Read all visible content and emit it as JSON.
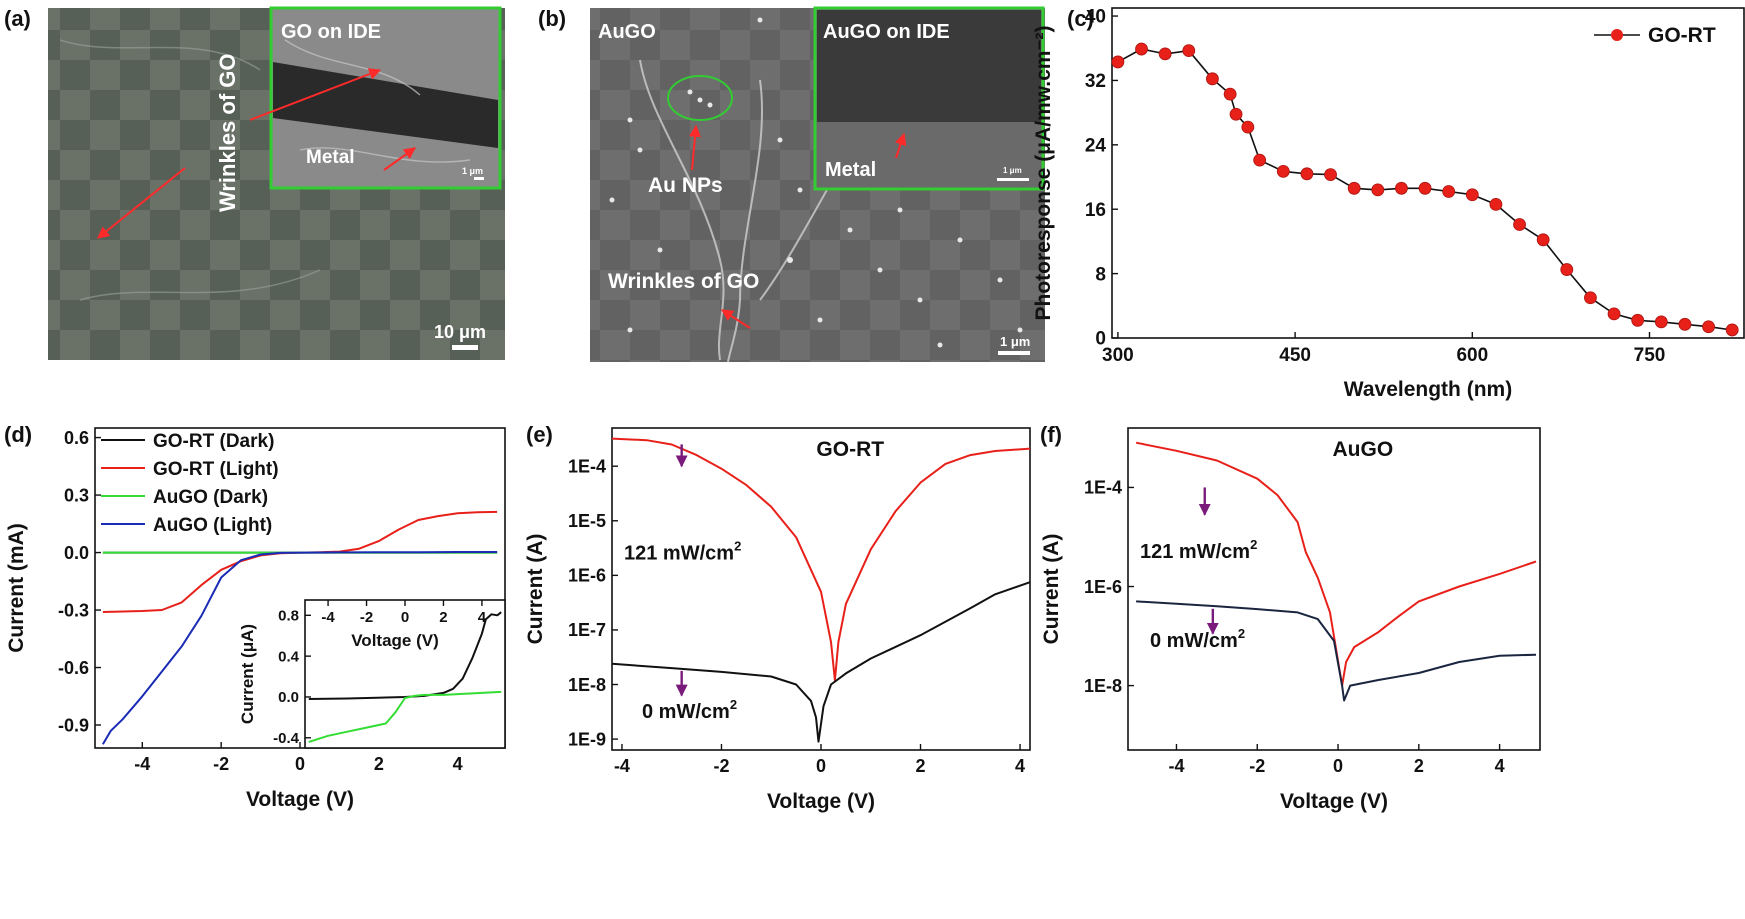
{
  "panels": {
    "a": {
      "label": "(a)",
      "inset_title": "GO on IDE",
      "wrinkles_label": "Wrinkles of GO",
      "metal_label": "Metal",
      "scale_main": "10 μm",
      "scale_inset": "1 μm"
    },
    "b": {
      "label": "(b)",
      "title": "AuGO",
      "inset_title": "AuGO on IDE",
      "au_label": "Au NPs",
      "wrinkles_label": "Wrinkles of GO",
      "metal_label": "Metal",
      "scale_main": "1 μm",
      "scale_inset": "1 μm"
    },
    "c": {
      "label": "(c)"
    },
    "d": {
      "label": "(d)"
    },
    "e": {
      "label": "(e)",
      "annot_light": "121 mW/cm",
      "annot_dark": "0 mW/cm",
      "annot_sup": "2"
    },
    "f": {
      "label": "(f)",
      "annot_light": "121 mW/cm",
      "annot_dark": "0 mW/cm",
      "annot_sup": "2"
    }
  },
  "colors": {
    "red": "#e8201a",
    "black": "#111111",
    "green": "#33dd33",
    "blue": "#1a2bb5",
    "arrow": "#7a1a7a",
    "inset_border": "#33cc33"
  },
  "chart_data": [
    {
      "id": "c",
      "type": "scatter",
      "title": "",
      "xlabel": "Wavelength (nm)",
      "ylabel": "Photoresponse (μA/mw.cm⁻²)",
      "xlim": [
        295,
        830
      ],
      "ylim": [
        0,
        41
      ],
      "xticks": [
        300,
        450,
        600,
        750
      ],
      "yticks": [
        0,
        8,
        16,
        24,
        32,
        40
      ],
      "legend": "top-right",
      "series": [
        {
          "name": "GO-RT",
          "x": [
            300,
            320,
            340,
            360,
            380,
            395,
            400,
            410,
            420,
            440,
            460,
            480,
            500,
            520,
            540,
            560,
            580,
            600,
            620,
            640,
            660,
            680,
            700,
            720,
            740,
            760,
            780,
            800,
            820
          ],
          "y": [
            34.3,
            35.9,
            35.3,
            35.7,
            32.2,
            30.3,
            27.8,
            26.2,
            22.1,
            20.7,
            20.4,
            20.3,
            18.6,
            18.4,
            18.6,
            18.6,
            18.2,
            17.8,
            16.6,
            14.1,
            12.2,
            8.5,
            5.0,
            3.0,
            2.2,
            2.0,
            1.7,
            1.4,
            1.0
          ]
        }
      ]
    },
    {
      "id": "d",
      "type": "line",
      "xlabel": "Voltage (V)",
      "ylabel": "Current (mA)",
      "xlim": [
        -5.2,
        5.2
      ],
      "ylim": [
        -1.02,
        0.65
      ],
      "xticks": [
        -4,
        -2,
        0,
        2,
        4
      ],
      "yticks": [
        -0.9,
        -0.6,
        -0.3,
        0.0,
        0.3,
        0.6
      ],
      "ytick_labels": [
        "-0.9",
        "-0.6",
        "-0.3",
        "0.0",
        "0.3",
        "0.6"
      ],
      "legend": "top-left",
      "series": [
        {
          "name": "GO-RT (Dark)",
          "color": "#111111",
          "x": [
            -5,
            0,
            5
          ],
          "y": [
            0,
            0,
            0
          ]
        },
        {
          "name": "GO-RT (Light)",
          "color": "#e8201a",
          "x": [
            -5,
            -4,
            -3.5,
            -3,
            -2.5,
            -2,
            -1.5,
            -1,
            -0.5,
            0,
            0.5,
            1,
            1.5,
            2,
            2.5,
            3,
            3.5,
            4,
            4.5,
            5
          ],
          "y": [
            -0.31,
            -0.305,
            -0.3,
            -0.26,
            -0.17,
            -0.09,
            -0.045,
            -0.015,
            -0.004,
            0.0,
            0.002,
            0.005,
            0.02,
            0.06,
            0.12,
            0.17,
            0.19,
            0.205,
            0.21,
            0.212
          ]
        },
        {
          "name": "AuGO  (Dark)",
          "color": "#33dd33",
          "x": [
            -5,
            0,
            5
          ],
          "y": [
            0,
            0,
            0
          ]
        },
        {
          "name": "AuGO  (Light)",
          "color": "#1a2bb5",
          "x": [
            -5,
            -4.8,
            -4.5,
            -4,
            -3.5,
            -3,
            -2.5,
            -2,
            -1.5,
            -1,
            -0.5,
            0,
            1,
            2,
            3,
            4,
            5
          ],
          "y": [
            -1.0,
            -0.93,
            -0.87,
            -0.75,
            -0.62,
            -0.49,
            -0.33,
            -0.13,
            -0.04,
            -0.01,
            -0.002,
            0.0,
            0.001,
            0.002,
            0.002,
            0.003,
            0.003
          ]
        }
      ],
      "inset": {
        "type": "line",
        "xlabel": "Voltage (V)",
        "ylabel": "Current (μA)",
        "xlim": [
          -5.2,
          5.2
        ],
        "ylim": [
          -0.5,
          0.95
        ],
        "xticks": [
          -4,
          -2,
          0,
          2,
          4
        ],
        "yticks": [
          -0.4,
          0.0,
          0.4,
          0.8
        ],
        "ytick_labels": [
          "-0.4",
          "0.0",
          "0.4",
          "0.8"
        ],
        "series": [
          {
            "name": "GO-RT (Dark)",
            "color": "#111111",
            "x": [
              -5,
              -3,
              -1,
              0,
              1,
              2,
              2.5,
              3,
              3.5,
              4,
              4.2,
              4.5,
              4.8,
              5
            ],
            "y": [
              -0.02,
              -0.015,
              -0.005,
              0.0,
              0.01,
              0.04,
              0.08,
              0.18,
              0.38,
              0.62,
              0.76,
              0.81,
              0.8,
              0.83
            ]
          },
          {
            "name": "AuGO (Dark)",
            "color": "#33dd33",
            "x": [
              -5,
              -4,
              -3,
              -2,
              -1,
              -0.5,
              0,
              0.5,
              1,
              2,
              3,
              4,
              5
            ],
            "y": [
              -0.44,
              -0.38,
              -0.34,
              -0.3,
              -0.26,
              -0.15,
              -0.01,
              0.01,
              0.02,
              0.02,
              0.03,
              0.04,
              0.05
            ]
          }
        ]
      }
    },
    {
      "id": "e",
      "type": "line",
      "title": "GO-RT",
      "xlabel": "Voltage (V)",
      "ylabel": "Current (A)",
      "yscale": "log",
      "xlim": [
        -4.2,
        4.2
      ],
      "ylim_log10": [
        -9.2,
        -3.3
      ],
      "xticks": [
        -4,
        -2,
        0,
        2,
        4
      ],
      "yticks_log10": [
        -9,
        -8,
        -7,
        -6,
        -5,
        -4
      ],
      "ytick_labels": [
        "1E-9",
        "1E-8",
        "1E-7",
        "1E-6",
        "1E-5",
        "1E-4"
      ],
      "series": [
        {
          "name": "121 mW/cm2",
          "color": "#e8201a",
          "x": [
            -4.2,
            -3.5,
            -3,
            -2.5,
            -2,
            -1.5,
            -1,
            -0.5,
            0,
            0.2,
            0.28,
            0.35,
            0.5,
            1,
            1.5,
            2,
            2.5,
            3,
            3.5,
            4.2
          ],
          "y": [
            0.00032,
            0.0003,
            0.00025,
            0.00016,
            9e-05,
            4.5e-05,
            1.8e-05,
            5e-06,
            5e-07,
            6e-08,
            1.2e-08,
            6e-08,
            3e-07,
            3e-06,
            1.5e-05,
            5e-05,
            0.00011,
            0.00016,
            0.00019,
            0.00021
          ]
        },
        {
          "name": "0 mW/cm2",
          "color": "#111111",
          "x": [
            -4.2,
            -3,
            -2,
            -1,
            -0.5,
            -0.2,
            -0.1,
            -0.05,
            0.05,
            0.2,
            0.5,
            1,
            2,
            3,
            3.5,
            4.2
          ],
          "y": [
            2.4e-08,
            2e-08,
            1.7e-08,
            1.4e-08,
            1e-08,
            5e-09,
            2.5e-09,
            9e-10,
            4e-09,
            1e-08,
            1.6e-08,
            3e-08,
            8e-08,
            2.5e-07,
            4.5e-07,
            7.5e-07
          ]
        }
      ]
    },
    {
      "id": "f",
      "type": "line",
      "title": "AuGO",
      "xlabel": "Voltage (V)",
      "ylabel": "Current (A)",
      "yscale": "log",
      "xlim": [
        -5.2,
        5.0
      ],
      "ylim_log10": [
        -9.3,
        -2.8
      ],
      "xticks": [
        -4,
        -2,
        0,
        2,
        4
      ],
      "yticks_log10": [
        -8,
        -6,
        -4
      ],
      "ytick_labels": [
        "1E-8",
        "1E-6",
        "1E-4"
      ],
      "series": [
        {
          "name": "121 mW/cm2",
          "color": "#e8201a",
          "x": [
            -5,
            -4,
            -3,
            -2,
            -1.5,
            -1,
            -0.8,
            -0.5,
            -0.2,
            0.1,
            0.2,
            0.4,
            1,
            1.5,
            2,
            3,
            4,
            4.9
          ],
          "y": [
            0.0008,
            0.00055,
            0.00035,
            0.00015,
            7e-05,
            2e-05,
            5e-06,
            1.5e-06,
            3e-07,
            1e-08,
            3e-08,
            6e-08,
            1.2e-07,
            2.5e-07,
            5e-07,
            1e-06,
            1.8e-06,
            3.2e-06
          ]
        },
        {
          "name": "0 mW/cm2",
          "color": "#1a2540",
          "x": [
            -5,
            -4,
            -3,
            -2,
            -1,
            -0.5,
            -0.1,
            0.1,
            0.15,
            0.3,
            1,
            2,
            3,
            4,
            4.9
          ],
          "y": [
            5e-07,
            4.5e-07,
            4e-07,
            3.5e-07,
            3e-07,
            2.2e-07,
            8e-08,
            1e-08,
            5e-09,
            1e-08,
            1.3e-08,
            1.8e-08,
            3e-08,
            4e-08,
            4.2e-08
          ]
        }
      ]
    }
  ]
}
